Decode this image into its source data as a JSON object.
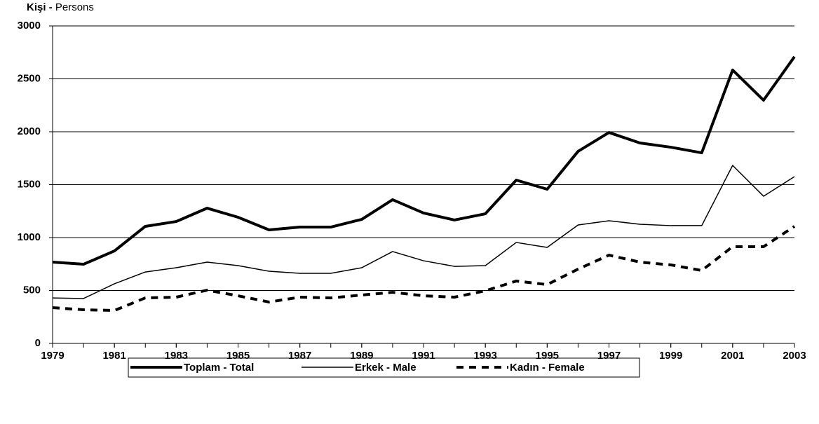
{
  "chart_data": {
    "type": "line",
    "ylabel_bold": "Kişi -",
    "ylabel": "Persons",
    "x": [
      1979,
      1980,
      1981,
      1982,
      1983,
      1984,
      1985,
      1986,
      1987,
      1988,
      1989,
      1990,
      1991,
      1992,
      1993,
      1994,
      1995,
      1996,
      1997,
      1998,
      1999,
      2000,
      2001,
      2002,
      2003
    ],
    "xlim": [
      1979,
      2003
    ],
    "xticks": [
      1979,
      1981,
      1983,
      1985,
      1987,
      1989,
      1991,
      1993,
      1995,
      1997,
      1999,
      2001,
      2003
    ],
    "ylim": [
      0,
      3000
    ],
    "yticks": [
      0,
      500,
      1000,
      1500,
      2000,
      2500,
      3000
    ],
    "grid": true,
    "legend": "bottom",
    "series": [
      {
        "name": "Toplam - Total",
        "color": "#000000",
        "line_width": 4,
        "dash": false,
        "values": [
          768,
          748,
          874,
          1106,
          1152,
          1278,
          1192,
          1073,
          1099,
          1099,
          1172,
          1358,
          1232,
          1166,
          1225,
          1543,
          1457,
          1815,
          1993,
          1894,
          1854,
          1801,
          2583,
          2298,
          2709
        ]
      },
      {
        "name": "Erkek - Male",
        "color": "#000000",
        "line_width": 1.5,
        "dash": false,
        "values": [
          430,
          424,
          563,
          675,
          715,
          768,
          735,
          682,
          662,
          662,
          715,
          868,
          781,
          728,
          735,
          954,
          907,
          1119,
          1159,
          1126,
          1113,
          1113,
          1682,
          1391,
          1576
        ]
      },
      {
        "name": "Kadın - Female",
        "color": "#000000",
        "line_width": 4,
        "dash": true,
        "values": [
          338,
          318,
          311,
          430,
          437,
          503,
          450,
          391,
          437,
          430,
          457,
          483,
          450,
          437,
          497,
          589,
          556,
          702,
          834,
          768,
          742,
          689,
          914,
          914,
          1106
        ]
      }
    ]
  }
}
